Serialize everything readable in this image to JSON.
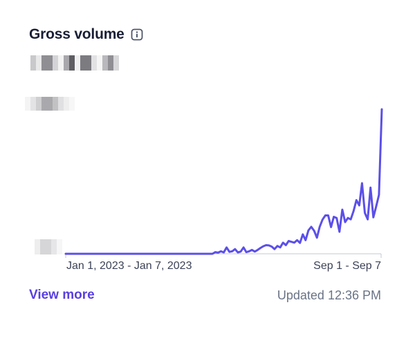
{
  "card": {
    "title": "Gross volume",
    "info_icon": "info-icon",
    "view_more": "View more",
    "updated": "Updated 12:36 PM"
  },
  "colors": {
    "line": "#5b4fe9",
    "link": "#5a3fe0",
    "muted": "#697386",
    "axis": "#c1c9d2"
  },
  "chart_data": {
    "type": "line",
    "title": "Gross volume",
    "x_start_label": "Jan 1, 2023 - Jan 7, 2023",
    "x_end_label": "Sep 1 - Sep 7",
    "y_labels_redacted": true,
    "grid": false,
    "series": [
      {
        "values": [
          0,
          0,
          0,
          0,
          0,
          0,
          0,
          0,
          0,
          0,
          0,
          0,
          0,
          0,
          0,
          0,
          0,
          0,
          0,
          0,
          0,
          0,
          0,
          0,
          0,
          0,
          0,
          0,
          0,
          0,
          0,
          0,
          0,
          0,
          0,
          0,
          0,
          0,
          0,
          0,
          0,
          0,
          0,
          0,
          0,
          0,
          0,
          0,
          0,
          0,
          0,
          0,
          0,
          0.6,
          0.4,
          0.9,
          0.5,
          2.3,
          0.7,
          0.9,
          1.7,
          0.5,
          0.8,
          2.3,
          0.6,
          0.9,
          1.4,
          0.8,
          1.4,
          2.1,
          2.7,
          3.1,
          3.0,
          2.6,
          1.7,
          2.8,
          2.3,
          4.0,
          3.1,
          4.6,
          4.3,
          4.0,
          4.9,
          3.9,
          7.0,
          4.9,
          8.4,
          9.7,
          8.3,
          5.8,
          9.7,
          12.3,
          13.8,
          13.8,
          9.6,
          13.3,
          12.9,
          7.9,
          15.9,
          11.4,
          12.9,
          12.4,
          15.4,
          19.3,
          17.4,
          25.4,
          14.7,
          12.4,
          23.8,
          13.1,
          17.0,
          21.2,
          52.0
        ]
      }
    ]
  }
}
